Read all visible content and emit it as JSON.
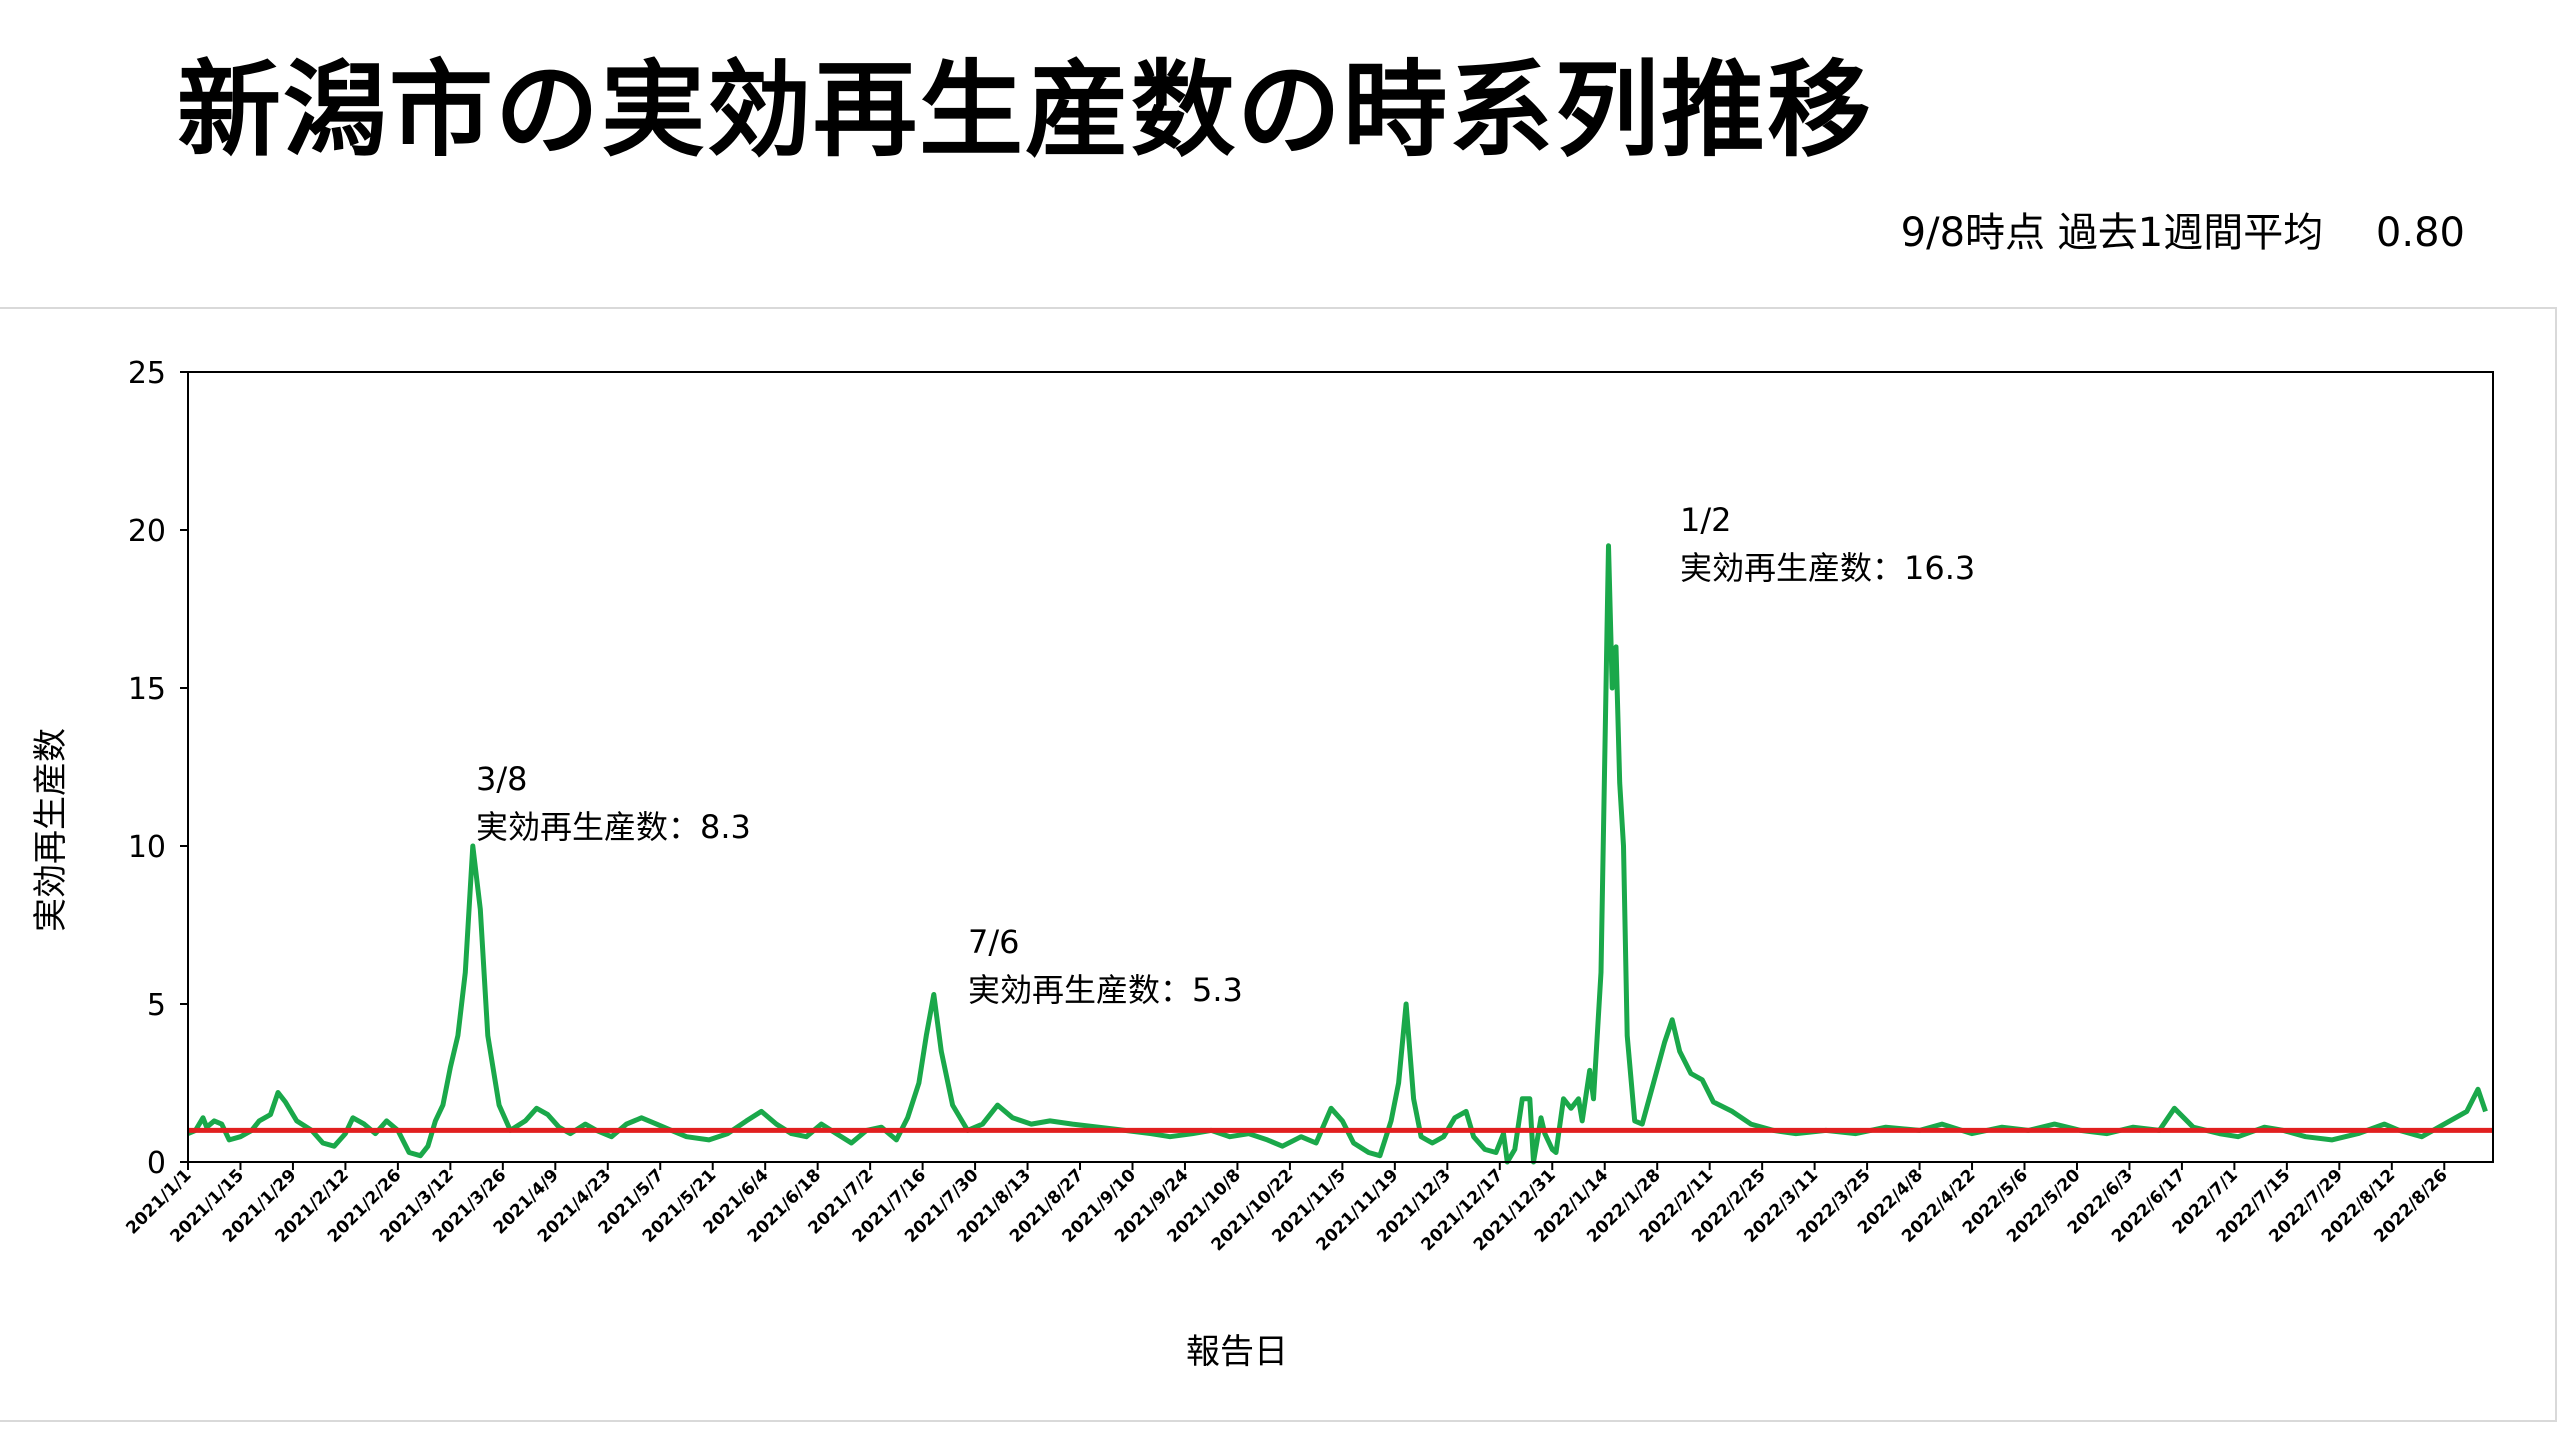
{
  "header": {
    "title": "新潟市の実効再生産数の時系列推移",
    "subtitle": "9/8時点 過去1週間平均　 0.80"
  },
  "chart_data": {
    "type": "line",
    "xlabel": "報告日",
    "ylabel": "実効再生産数",
    "ylim": [
      0,
      25
    ],
    "yticks": [
      "0",
      "5",
      "10",
      "15",
      "20",
      "25"
    ],
    "xticks": [
      "2021/1/1",
      "2021/1/15",
      "2021/1/29",
      "2021/2/12",
      "2021/2/26",
      "2021/3/12",
      "2021/3/26",
      "2021/4/9",
      "2021/4/23",
      "2021/5/7",
      "2021/5/21",
      "2021/6/4",
      "2021/6/18",
      "2021/7/2",
      "2021/7/16",
      "2021/7/30",
      "2021/8/13",
      "2021/8/27",
      "2021/9/10",
      "2021/9/24",
      "2021/10/8",
      "2021/10/22",
      "2021/11/5",
      "2021/11/19",
      "2021/12/3",
      "2021/12/17",
      "2021/12/31",
      "2022/1/14",
      "2022/1/28",
      "2022/2/11",
      "2022/2/25",
      "2022/3/11",
      "2022/3/25",
      "2022/4/8",
      "2022/4/22",
      "2022/5/6",
      "2022/5/20",
      "2022/6/3",
      "2022/6/17",
      "2022/7/1",
      "2022/7/15",
      "2022/7/29",
      "2022/8/12",
      "2022/8/26"
    ],
    "x_range": [
      "2021/1/1",
      "2022/9/8"
    ],
    "series": [
      {
        "color": "#1aa84a",
        "points": [
          [
            "2021/1/1",
            0.9
          ],
          [
            "2021/1/3",
            1.0
          ],
          [
            "2021/1/5",
            1.4
          ],
          [
            "2021/1/6",
            1.1
          ],
          [
            "2021/1/8",
            1.3
          ],
          [
            "2021/1/10",
            1.2
          ],
          [
            "2021/1/12",
            0.7
          ],
          [
            "2021/1/15",
            0.8
          ],
          [
            "2021/1/18",
            1.0
          ],
          [
            "2021/1/20",
            1.3
          ],
          [
            "2021/1/23",
            1.5
          ],
          [
            "2021/1/25",
            2.2
          ],
          [
            "2021/1/27",
            1.9
          ],
          [
            "2021/1/30",
            1.3
          ],
          [
            "2021/2/3",
            1.0
          ],
          [
            "2021/2/6",
            0.6
          ],
          [
            "2021/2/9",
            0.5
          ],
          [
            "2021/2/12",
            0.9
          ],
          [
            "2021/2/14",
            1.4
          ],
          [
            "2021/2/17",
            1.2
          ],
          [
            "2021/2/20",
            0.9
          ],
          [
            "2021/2/23",
            1.3
          ],
          [
            "2021/2/26",
            1.0
          ],
          [
            "2021/3/1",
            0.3
          ],
          [
            "2021/3/4",
            0.2
          ],
          [
            "2021/3/6",
            0.5
          ],
          [
            "2021/3/8",
            1.3
          ],
          [
            "2021/3/10",
            1.8
          ],
          [
            "2021/3/12",
            3.0
          ],
          [
            "2021/3/14",
            4.0
          ],
          [
            "2021/3/16",
            6.0
          ],
          [
            "2021/3/18",
            10.0
          ],
          [
            "2021/3/20",
            8.0
          ],
          [
            "2021/3/22",
            4.0
          ],
          [
            "2021/3/25",
            1.8
          ],
          [
            "2021/3/28",
            1.0
          ],
          [
            "2021/4/1",
            1.3
          ],
          [
            "2021/4/4",
            1.7
          ],
          [
            "2021/4/7",
            1.5
          ],
          [
            "2021/4/10",
            1.1
          ],
          [
            "2021/4/13",
            0.9
          ],
          [
            "2021/4/17",
            1.2
          ],
          [
            "2021/4/20",
            1.0
          ],
          [
            "2021/4/24",
            0.8
          ],
          [
            "2021/4/28",
            1.2
          ],
          [
            "2021/5/2",
            1.4
          ],
          [
            "2021/5/6",
            1.2
          ],
          [
            "2021/5/10",
            1.0
          ],
          [
            "2021/5/14",
            0.8
          ],
          [
            "2021/5/20",
            0.7
          ],
          [
            "2021/5/25",
            0.9
          ],
          [
            "2021/5/30",
            1.3
          ],
          [
            "2021/6/3",
            1.6
          ],
          [
            "2021/6/7",
            1.2
          ],
          [
            "2021/6/11",
            0.9
          ],
          [
            "2021/6/15",
            0.8
          ],
          [
            "2021/6/19",
            1.2
          ],
          [
            "2021/6/23",
            0.9
          ],
          [
            "2021/6/27",
            0.6
          ],
          [
            "2021/7/1",
            1.0
          ],
          [
            "2021/7/5",
            1.1
          ],
          [
            "2021/7/9",
            0.7
          ],
          [
            "2021/7/12",
            1.4
          ],
          [
            "2021/7/15",
            2.5
          ],
          [
            "2021/7/17",
            4.0
          ],
          [
            "2021/7/19",
            5.3
          ],
          [
            "2021/7/21",
            3.5
          ],
          [
            "2021/7/24",
            1.8
          ],
          [
            "2021/7/28",
            1.0
          ],
          [
            "2021/8/1",
            1.2
          ],
          [
            "2021/8/5",
            1.8
          ],
          [
            "2021/8/9",
            1.4
          ],
          [
            "2021/8/14",
            1.2
          ],
          [
            "2021/8/19",
            1.3
          ],
          [
            "2021/8/25",
            1.2
          ],
          [
            "2021/9/1",
            1.1
          ],
          [
            "2021/9/8",
            1.0
          ],
          [
            "2021/9/15",
            0.9
          ],
          [
            "2021/9/20",
            0.8
          ],
          [
            "2021/9/26",
            0.9
          ],
          [
            "2021/10/1",
            1.0
          ],
          [
            "2021/10/6",
            0.8
          ],
          [
            "2021/10/11",
            0.9
          ],
          [
            "2021/10/16",
            0.7
          ],
          [
            "2021/10/20",
            0.5
          ],
          [
            "2021/10/25",
            0.8
          ],
          [
            "2021/10/29",
            0.6
          ],
          [
            "2021/11/2",
            1.7
          ],
          [
            "2021/11/5",
            1.3
          ],
          [
            "2021/11/8",
            0.6
          ],
          [
            "2021/11/12",
            0.3
          ],
          [
            "2021/11/15",
            0.2
          ],
          [
            "2021/11/18",
            1.3
          ],
          [
            "2021/11/20",
            2.5
          ],
          [
            "2021/11/22",
            5.0
          ],
          [
            "2021/11/24",
            2.0
          ],
          [
            "2021/11/26",
            0.8
          ],
          [
            "2021/11/29",
            0.6
          ],
          [
            "2021/12/2",
            0.8
          ],
          [
            "2021/12/5",
            1.4
          ],
          [
            "2021/12/8",
            1.6
          ],
          [
            "2021/12/10",
            0.8
          ],
          [
            "2021/12/13",
            0.4
          ],
          [
            "2021/12/16",
            0.3
          ],
          [
            "2021/12/18",
            0.9
          ],
          [
            "2021/12/19",
            0.0
          ],
          [
            "2021/12/21",
            0.4
          ],
          [
            "2021/12/23",
            2.0
          ],
          [
            "2021/12/25",
            2.0
          ],
          [
            "2021/12/26",
            0.0
          ],
          [
            "2021/12/28",
            1.4
          ],
          [
            "2021/12/29",
            0.9
          ],
          [
            "2021/12/31",
            0.4
          ],
          [
            "2022/1/1",
            0.3
          ],
          [
            "2022/1/3",
            2.0
          ],
          [
            "2022/1/5",
            1.7
          ],
          [
            "2022/1/7",
            2.0
          ],
          [
            "2022/1/8",
            1.3
          ],
          [
            "2022/1/10",
            2.9
          ],
          [
            "2022/1/11",
            2.0
          ],
          [
            "2022/1/13",
            6.0
          ],
          [
            "2022/1/15",
            19.5
          ],
          [
            "2022/1/16",
            15.0
          ],
          [
            "2022/1/17",
            16.3
          ],
          [
            "2022/1/18",
            12.0
          ],
          [
            "2022/1/19",
            10.0
          ],
          [
            "2022/1/20",
            4.0
          ],
          [
            "2022/1/22",
            1.3
          ],
          [
            "2022/1/24",
            1.2
          ],
          [
            "2022/1/27",
            2.5
          ],
          [
            "2022/1/30",
            3.8
          ],
          [
            "2022/2/1",
            4.5
          ],
          [
            "2022/2/3",
            3.5
          ],
          [
            "2022/2/6",
            2.8
          ],
          [
            "2022/2/9",
            2.6
          ],
          [
            "2022/2/12",
            1.9
          ],
          [
            "2022/2/17",
            1.6
          ],
          [
            "2022/2/22",
            1.2
          ],
          [
            "2022/2/28",
            1.0
          ],
          [
            "2022/3/6",
            0.9
          ],
          [
            "2022/3/14",
            1.0
          ],
          [
            "2022/3/22",
            0.9
          ],
          [
            "2022/3/30",
            1.1
          ],
          [
            "2022/4/8",
            1.0
          ],
          [
            "2022/4/14",
            1.2
          ],
          [
            "2022/4/22",
            0.9
          ],
          [
            "2022/4/30",
            1.1
          ],
          [
            "2022/5/7",
            1.0
          ],
          [
            "2022/5/14",
            1.2
          ],
          [
            "2022/5/21",
            1.0
          ],
          [
            "2022/5/28",
            0.9
          ],
          [
            "2022/6/4",
            1.1
          ],
          [
            "2022/6/11",
            1.0
          ],
          [
            "2022/6/15",
            1.7
          ],
          [
            "2022/6/20",
            1.1
          ],
          [
            "2022/6/27",
            0.9
          ],
          [
            "2022/7/2",
            0.8
          ],
          [
            "2022/7/9",
            1.1
          ],
          [
            "2022/7/14",
            1.0
          ],
          [
            "2022/7/20",
            0.8
          ],
          [
            "2022/7/27",
            0.7
          ],
          [
            "2022/8/3",
            0.9
          ],
          [
            "2022/8/10",
            1.2
          ],
          [
            "2022/8/14",
            1.0
          ],
          [
            "2022/8/20",
            0.8
          ],
          [
            "2022/8/26",
            1.2
          ],
          [
            "2022/9/1",
            1.6
          ],
          [
            "2022/9/4",
            2.3
          ],
          [
            "2022/9/6",
            1.6
          ]
        ]
      },
      {
        "color": "#e11f1f",
        "points": [
          [
            "2021/1/1",
            1.0
          ],
          [
            "2022/9/8",
            1.0
          ]
        ]
      }
    ],
    "annotations": [
      {
        "date": "3/8",
        "text": "実効再生産数：8.3"
      },
      {
        "date": "7/6",
        "text": "実効再生産数：5.3"
      },
      {
        "date": "1/2",
        "text": "実効再生産数：16.3"
      }
    ]
  }
}
